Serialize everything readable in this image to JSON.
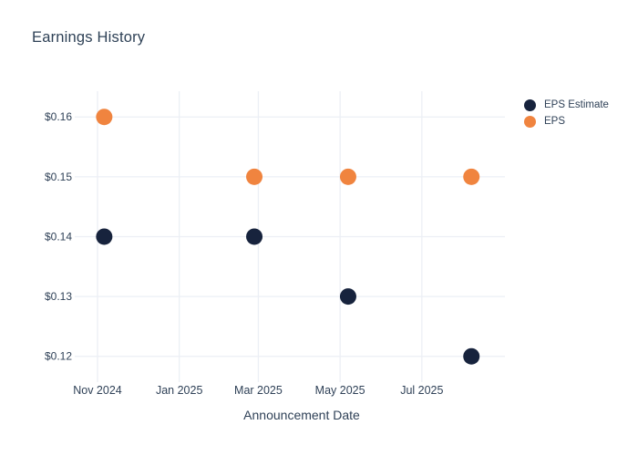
{
  "chart_data": {
    "type": "scatter",
    "title": "Earnings History",
    "xlabel": "Announcement Date",
    "ylabel": "",
    "x_range": [
      "2024-10-15",
      "2025-09-01"
    ],
    "ylim": [
      0.116,
      0.1643
    ],
    "x_ticks": [
      {
        "date": "2024-11-01",
        "label": "Nov 2024"
      },
      {
        "date": "2025-01-01",
        "label": "Jan 2025"
      },
      {
        "date": "2025-03-01",
        "label": "Mar 2025"
      },
      {
        "date": "2025-05-01",
        "label": "May 2025"
      },
      {
        "date": "2025-07-01",
        "label": "Jul 2025"
      }
    ],
    "y_ticks": [
      {
        "value": 0.16,
        "label": "$0.16"
      },
      {
        "value": 0.15,
        "label": "$0.15"
      },
      {
        "value": 0.14,
        "label": "$0.14"
      },
      {
        "value": 0.13,
        "label": "$0.13"
      },
      {
        "value": 0.12,
        "label": "$0.12"
      }
    ],
    "series": [
      {
        "name": "EPS Estimate",
        "color": "#17233d",
        "marker_diameter": 18,
        "points": [
          {
            "date": "2024-11-06",
            "value": 0.14
          },
          {
            "date": "2025-02-26",
            "value": 0.14
          },
          {
            "date": "2025-05-07",
            "value": 0.13
          },
          {
            "date": "2025-08-07",
            "value": 0.12
          }
        ]
      },
      {
        "name": "EPS",
        "color": "#f0843f",
        "marker_diameter": 18,
        "points": [
          {
            "date": "2024-11-06",
            "value": 0.16
          },
          {
            "date": "2025-02-26",
            "value": 0.15
          },
          {
            "date": "2025-05-07",
            "value": 0.15
          },
          {
            "date": "2025-08-07",
            "value": 0.15
          }
        ]
      }
    ],
    "legend": {
      "position": "right",
      "items": [
        "EPS Estimate",
        "EPS"
      ]
    },
    "grid": true,
    "grid_color": "#eceff5",
    "text_color": "#2f4157",
    "background": "#ffffff"
  }
}
